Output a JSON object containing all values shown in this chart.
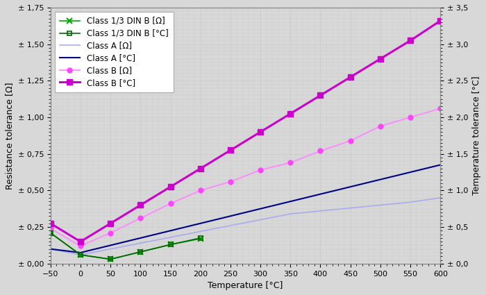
{
  "title": "",
  "xlabel": "Temperature [°C]",
  "ylabel_left": "Resistance tolerance [Ω]",
  "ylabel_right": "Temperature tolerance [°C]",
  "xlim": [
    -50,
    600
  ],
  "ylim_left": [
    0.0,
    1.75
  ],
  "ylim_right": [
    0.0,
    3.5
  ],
  "xticks": [
    -50,
    0,
    50,
    100,
    150,
    200,
    250,
    300,
    350,
    400,
    450,
    500,
    550,
    600
  ],
  "yticks_left": [
    0.0,
    0.25,
    0.5,
    0.75,
    1.0,
    1.25,
    1.5,
    1.75
  ],
  "yticks_right": [
    0.0,
    0.5,
    1.0,
    1.5,
    2.0,
    2.5,
    3.0,
    3.5
  ],
  "ytick_labels_left": [
    "± 0,00",
    "± 0,25",
    "± 0,50",
    "± 0,75",
    "± 1,00",
    "± 1,25",
    "± 1,50",
    "± 1,75"
  ],
  "ytick_labels_right": [
    "± 0,0",
    "± 0,5",
    "± 1,0",
    "± 1,5",
    "± 2,0",
    "± 2,5",
    "± 3,0",
    "± 3,5"
  ],
  "series": [
    {
      "label": "Class 1/3 DIN B [Ω]",
      "x": [
        -50,
        0,
        50,
        100,
        150,
        200
      ],
      "y": [
        0.21,
        0.06,
        0.03,
        0.08,
        0.13,
        0.17
      ],
      "color": "#00aa00",
      "linewidth": 1.2,
      "linestyle": "-",
      "marker": "x",
      "markersize": 6,
      "markeredgewidth": 1.5,
      "axis": "left",
      "zorder": 3
    },
    {
      "label": "Class 1/3 DIN B [°C]",
      "x": [
        -50,
        0,
        50,
        100,
        150,
        200
      ],
      "y": [
        0.42,
        0.12,
        0.06,
        0.16,
        0.26,
        0.35
      ],
      "color": "#006600",
      "linewidth": 1.2,
      "linestyle": "-",
      "marker": "s",
      "markersize": 5,
      "markerfacecolor": "none",
      "markeredgewidth": 1.2,
      "axis": "right",
      "zorder": 3
    },
    {
      "label": "Class A [Ω]",
      "x": [
        -50,
        0,
        50,
        100,
        150,
        200,
        250,
        300,
        350,
        400,
        450,
        500,
        550,
        600
      ],
      "y": [
        0.1,
        0.06,
        0.1,
        0.14,
        0.18,
        0.22,
        0.26,
        0.3,
        0.34,
        0.36,
        0.38,
        0.4,
        0.42,
        0.45
      ],
      "color": "#aaaaee",
      "linewidth": 1.2,
      "linestyle": "-",
      "marker": null,
      "markersize": 0,
      "axis": "left",
      "zorder": 2
    },
    {
      "label": "Class A [°C]",
      "x": [
        -50,
        0,
        50,
        100,
        150,
        200,
        250,
        300,
        350,
        400,
        450,
        500,
        550,
        600
      ],
      "y": [
        0.2,
        0.15,
        0.25,
        0.35,
        0.45,
        0.55,
        0.65,
        0.75,
        0.85,
        0.95,
        1.05,
        1.15,
        1.25,
        1.35
      ],
      "color": "#000088",
      "linewidth": 1.5,
      "linestyle": "-",
      "marker": null,
      "markersize": 0,
      "axis": "right",
      "zorder": 2
    },
    {
      "label": "Class B [Ω]",
      "x": [
        -50,
        0,
        50,
        100,
        150,
        200,
        250,
        300,
        350,
        400,
        450,
        500,
        550,
        600
      ],
      "y": [
        0.24,
        0.12,
        0.21,
        0.31,
        0.41,
        0.5,
        0.56,
        0.64,
        0.69,
        0.77,
        0.84,
        0.94,
        1.0,
        1.06
      ],
      "color": "#ff88ff",
      "linewidth": 1.3,
      "linestyle": "-",
      "marker": "o",
      "markersize": 5,
      "markerfacecolor": "#ff44ff",
      "markeredgecolor": "#ff44ff",
      "axis": "left",
      "zorder": 4
    },
    {
      "label": "Class B [°C]",
      "x": [
        -50,
        0,
        50,
        100,
        150,
        200,
        250,
        300,
        350,
        400,
        450,
        500,
        550,
        600
      ],
      "y": [
        0.55,
        0.3,
        0.55,
        0.8,
        1.05,
        1.3,
        1.55,
        1.8,
        2.05,
        2.3,
        2.55,
        2.8,
        3.05,
        3.32
      ],
      "color": "#cc00cc",
      "linewidth": 2.2,
      "linestyle": "-",
      "marker": "s",
      "markersize": 6,
      "markerfacecolor": "#cc00cc",
      "markeredgecolor": "#cc00cc",
      "axis": "right",
      "zorder": 4
    }
  ],
  "grid_color": "#cccccc",
  "grid_linewidth": 0.5,
  "background_color": "#d8d8d8",
  "plot_bg_color": "#d8d8d8",
  "legend_loc": "upper left",
  "legend_fontsize": 8.5,
  "figsize": [
    7.0,
    4.25
  ],
  "dpi": 100
}
